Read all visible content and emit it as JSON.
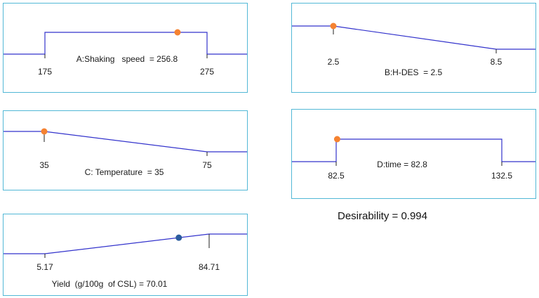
{
  "colors": {
    "panel_border": "#52b8d6",
    "curve": "#3333cc",
    "factor_marker": "#f58231",
    "response_marker": "#2b5c9e"
  },
  "desirability_label": "Desirability = 0.994",
  "chart_data": [
    {
      "type": "line",
      "name": "A:Shaking   speed",
      "label": "A:Shaking   speed  = 256.8",
      "value": 256.8,
      "low": 175,
      "high": 275,
      "low_label": "175",
      "high_label": "275",
      "shape": "box",
      "marker": "factor"
    },
    {
      "type": "line",
      "name": "B:H-DES",
      "label": "B:H-DES  = 2.5",
      "value": 2.5,
      "low": 2.5,
      "high": 8.5,
      "low_label": "2.5",
      "high_label": "8.5",
      "shape": "ramp-down",
      "marker": "factor"
    },
    {
      "type": "line",
      "name": "C: Temperature",
      "label": "C: Temperature  = 35",
      "value": 35,
      "low": 35,
      "high": 75,
      "low_label": "35",
      "high_label": "75",
      "shape": "ramp-down",
      "marker": "factor"
    },
    {
      "type": "line",
      "name": "D:time",
      "label": "D:time = 82.8",
      "value": 82.8,
      "low": 82.5,
      "high": 132.5,
      "low_label": "82.5",
      "high_label": "132.5",
      "shape": "box",
      "marker": "factor"
    },
    {
      "type": "line",
      "name": "Yield  (g/100g  of CSL)",
      "label": "Yield  (g/100g  of CSL) = 70.01",
      "value": 70.01,
      "low": 5.17,
      "high": 84.71,
      "low_label": "5.17",
      "high_label": "84.71",
      "shape": "ramp-up",
      "marker": "response"
    }
  ]
}
